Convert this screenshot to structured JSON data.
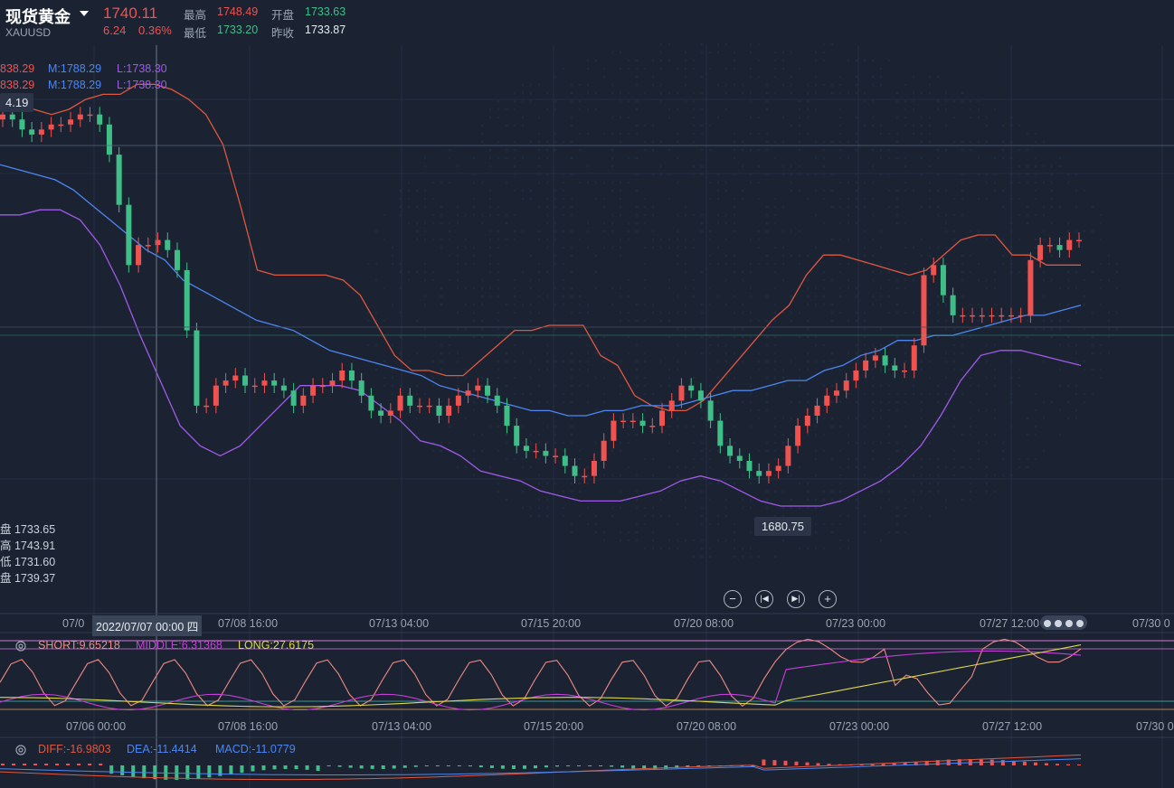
{
  "header": {
    "title": "现货黄金",
    "symbol": "XAUUSD",
    "price": "1740.11",
    "change": "6.24",
    "change_pct": "0.36%",
    "high_label": "最高",
    "high": "1748.49",
    "open_label": "开盘",
    "open": "1733.63",
    "low_label": "最低",
    "low": "1733.20",
    "prev_label": "昨收",
    "prev": "1733.87"
  },
  "bollinger": {
    "row1": {
      "u": "838.29",
      "m": "M:1788.29",
      "l": "L:1738.30"
    },
    "row2": {
      "u": "838.29",
      "m": "M:1788.29",
      "l": "L:1738.30"
    }
  },
  "price_tag_left": "4.19",
  "low_tag": "1680.75",
  "crosshair_ohlc": {
    "open": "盘 1733.65",
    "high": "高 1743.91",
    "low": "低 1731.60",
    "close": "盘 1739.37"
  },
  "crosshair_time": "2022/07/07 00:00 四",
  "xaxis_main": [
    "07/0",
    "07/08 16:00",
    "07/13 04:00",
    "07/15 20:00",
    "07/20 08:00",
    "07/23 00:00",
    "07/27 12:00",
    "07/30 0"
  ],
  "xaxis_sub": [
    "07/06 00:00",
    "07/08 16:00",
    "07/13 04:00",
    "07/15 20:00",
    "07/20 08:00",
    "07/23 00:00",
    "07/27 12:00",
    "07/30 0"
  ],
  "ma_indicator": {
    "short": "SHORT:9.65218",
    "middle": "MIDDLE:6.31368",
    "long": "LONG:27.6175"
  },
  "macd_indicator": {
    "diff": "DIFF:-16.9803",
    "dea": "DEA:-11.4414",
    "macd": "MACD:-11.0779"
  },
  "colors": {
    "up": "#f0524f",
    "down": "#3fbf87",
    "upper": "#e0573f",
    "mid": "#4d86f0",
    "lower": "#a05ae8",
    "bg": "#1b2333"
  },
  "chart_data": {
    "type": "line",
    "candles_close": [
      1748,
      1747,
      1745,
      1744,
      1745,
      1746,
      1746,
      1747,
      1748,
      1748,
      1746,
      1740,
      1730,
      1718,
      1722,
      1722,
      1723,
      1721,
      1717,
      1705,
      1690,
      1690,
      1694,
      1695,
      1696,
      1694,
      1694,
      1695,
      1694,
      1693,
      1690,
      1692,
      1694,
      1694,
      1695,
      1697,
      1695,
      1692,
      1689,
      1688,
      1689,
      1692,
      1690,
      1690,
      1690,
      1688,
      1690,
      1692,
      1693,
      1694,
      1692,
      1690,
      1686,
      1682,
      1681,
      1681,
      1680,
      1680,
      1678,
      1676,
      1676,
      1679,
      1683,
      1687,
      1687,
      1687,
      1686,
      1686,
      1689,
      1691,
      1694,
      1693,
      1691,
      1687,
      1682,
      1680,
      1679,
      1677,
      1676,
      1677,
      1678,
      1682,
      1686,
      1688,
      1690,
      1692,
      1693,
      1695,
      1697,
      1699,
      1700,
      1698,
      1697,
      1697,
      1702,
      1716,
      1718,
      1712,
      1708,
      1708,
      1708,
      1708,
      1708,
      1708,
      1708,
      1708,
      1719,
      1722,
      1722,
      1721,
      1723,
      1723
    ],
    "upper_band": [
      1752,
      1750,
      1749,
      1748,
      1749,
      1751,
      1752,
      1752,
      1754,
      1754,
      1753,
      1751,
      1748,
      1742,
      1730,
      1717,
      1716,
      1716,
      1716,
      1716,
      1715,
      1712,
      1706,
      1700,
      1697,
      1697,
      1696,
      1696,
      1699,
      1702,
      1705,
      1705,
      1706,
      1706,
      1706,
      1700,
      1698,
      1692,
      1690,
      1689,
      1689,
      1691,
      1695,
      1699,
      1703,
      1707,
      1710,
      1716,
      1720,
      1720,
      1719,
      1718,
      1717,
      1716,
      1717,
      1720,
      1723,
      1724,
      1724,
      1720,
      1720,
      1718,
      1718,
      1718
    ],
    "middle_band": [
      1738,
      1737,
      1736,
      1735,
      1733,
      1730,
      1727,
      1724,
      1721,
      1719,
      1715,
      1713,
      1711,
      1709,
      1707,
      1706,
      1705,
      1703,
      1701,
      1700,
      1699,
      1698,
      1697,
      1696,
      1694,
      1693,
      1692,
      1691,
      1690,
      1689,
      1689,
      1688,
      1688,
      1689,
      1689,
      1690,
      1690,
      1690,
      1691,
      1692,
      1693,
      1693,
      1694,
      1695,
      1695,
      1697,
      1698,
      1700,
      1701,
      1703,
      1703,
      1704,
      1704,
      1705,
      1706,
      1707,
      1708,
      1708,
      1709,
      1710
    ],
    "lower_band": [
      1728,
      1728,
      1729,
      1729,
      1727,
      1722,
      1714,
      1704,
      1695,
      1686,
      1682,
      1680,
      1682,
      1686,
      1690,
      1694,
      1694,
      1694,
      1693,
      1690,
      1687,
      1683,
      1682,
      1680,
      1677,
      1676,
      1675,
      1673,
      1672,
      1671,
      1671,
      1671,
      1672,
      1673,
      1675,
      1676,
      1675,
      1673,
      1671,
      1670,
      1670,
      1670,
      1671,
      1673,
      1675,
      1678,
      1682,
      1688,
      1695,
      1700,
      1701,
      1701,
      1700,
      1699,
      1698
    ],
    "ylim": [
      1670,
      1760
    ]
  }
}
